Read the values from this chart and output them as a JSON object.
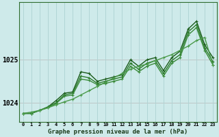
{
  "title": "Graphe pression niveau de la mer (hPa)",
  "xlabel_ticks": [
    "0",
    "1",
    "2",
    "3",
    "4",
    "5",
    "6",
    "7",
    "8",
    "9",
    "10",
    "11",
    "12",
    "13",
    "14",
    "15",
    "16",
    "17",
    "18",
    "19",
    "20",
    "21",
    "22",
    "23"
  ],
  "ylim": [
    1023.55,
    1026.35
  ],
  "yticks": [
    1024,
    1025
  ],
  "background_color": "#ceeaea",
  "grid_color": "#afd4d4",
  "series": [
    {
      "y": [
        1023.75,
        1023.75,
        1023.82,
        1023.9,
        1024.05,
        1024.22,
        1024.25,
        1024.72,
        1024.68,
        1024.5,
        1024.55,
        1024.6,
        1024.65,
        1025.0,
        1024.85,
        1025.0,
        1025.05,
        1024.75,
        1025.05,
        1025.2,
        1025.72,
        1025.9,
        1025.35,
        1025.05
      ],
      "color": "#1a5c1a",
      "lw": 1.0
    },
    {
      "y": [
        1023.75,
        1023.75,
        1023.82,
        1023.9,
        1024.0,
        1024.18,
        1024.22,
        1024.62,
        1024.58,
        1024.45,
        1024.5,
        1024.55,
        1024.6,
        1024.92,
        1024.78,
        1024.92,
        1024.98,
        1024.68,
        1024.98,
        1025.12,
        1025.65,
        1025.82,
        1025.28,
        1024.95
      ],
      "color": "#2a7a2a",
      "lw": 1.0
    },
    {
      "y": [
        1023.75,
        1023.75,
        1023.82,
        1023.88,
        1023.98,
        1024.15,
        1024.18,
        1024.55,
        1024.52,
        1024.42,
        1024.45,
        1024.5,
        1024.55,
        1024.85,
        1024.72,
        1024.85,
        1024.92,
        1024.62,
        1024.92,
        1025.05,
        1025.58,
        1025.75,
        1025.22,
        1024.88
      ],
      "color": "#3a8a3a",
      "lw": 1.0
    },
    {
      "y": [
        1023.75,
        1023.78,
        1023.82,
        1023.88,
        1023.95,
        1024.02,
        1024.08,
        1024.18,
        1024.28,
        1024.38,
        1024.48,
        1024.58,
        1024.68,
        1024.78,
        1024.85,
        1024.9,
        1024.98,
        1025.05,
        1025.12,
        1025.22,
        1025.32,
        1025.45,
        1025.52,
        1024.88
      ],
      "color": "#4a9a4a",
      "lw": 1.0
    }
  ]
}
